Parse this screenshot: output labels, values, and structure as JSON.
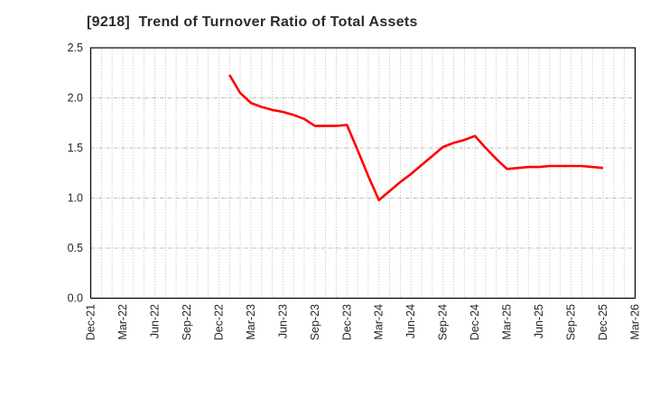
{
  "chart_data": {
    "type": "line",
    "title": "[9218]  Trend of Turnover Ratio of Total Assets",
    "xlabel": "",
    "ylabel": "",
    "legend": "none",
    "grid": "on",
    "background_color": "#ffffff",
    "frame_color": "#000000",
    "grid_color": "#a9a9a9",
    "tick_label_color": "#262626",
    "title_color": "#2b2b2b",
    "line_color": "#ff0000",
    "y_axis": {
      "min": 0.0,
      "max": 2.5,
      "step": 0.5
    },
    "y_tick_labels": [
      "0.0",
      "0.5",
      "1.0",
      "1.5",
      "2.0",
      "2.5"
    ],
    "x_axis_start": "Dec-21",
    "x_axis_end": "Mar-26",
    "total_months": 51,
    "x_tick_interval_months": 3,
    "x_tick_labels": [
      "Dec-21",
      "Mar-22",
      "Jun-22",
      "Sep-22",
      "Dec-22",
      "Mar-23",
      "Jun-23",
      "Sep-23",
      "Dec-23",
      "Mar-24",
      "Jun-24",
      "Sep-24",
      "Dec-24",
      "Mar-25",
      "Jun-25",
      "Sep-25",
      "Dec-25",
      "Mar-26"
    ],
    "series": [
      {
        "name": "Turnover Ratio of Total Assets",
        "color": "#ff0000",
        "points": [
          {
            "month": "Jan-23",
            "value": 2.23
          },
          {
            "month": "Feb-23",
            "value": 2.05
          },
          {
            "month": "Mar-23",
            "value": 1.95
          },
          {
            "month": "Apr-23",
            "value": 1.91
          },
          {
            "month": "May-23",
            "value": 1.88
          },
          {
            "month": "Jun-23",
            "value": 1.86
          },
          {
            "month": "Jul-23",
            "value": 1.83
          },
          {
            "month": "Aug-23",
            "value": 1.79
          },
          {
            "month": "Sep-23",
            "value": 1.72
          },
          {
            "month": "Oct-23",
            "value": 1.72
          },
          {
            "month": "Nov-23",
            "value": 1.72
          },
          {
            "month": "Dec-23",
            "value": 1.73
          },
          {
            "month": "Jan-24",
            "value": 1.48
          },
          {
            "month": "Feb-24",
            "value": 1.22
          },
          {
            "month": "Mar-24",
            "value": 0.98
          },
          {
            "month": "Apr-24",
            "value": 1.07
          },
          {
            "month": "May-24",
            "value": 1.16
          },
          {
            "month": "Jun-24",
            "value": 1.24
          },
          {
            "month": "Jul-24",
            "value": 1.33
          },
          {
            "month": "Aug-24",
            "value": 1.42
          },
          {
            "month": "Sep-24",
            "value": 1.51
          },
          {
            "month": "Oct-24",
            "value": 1.55
          },
          {
            "month": "Nov-24",
            "value": 1.58
          },
          {
            "month": "Dec-24",
            "value": 1.62
          },
          {
            "month": "Jan-25",
            "value": 1.5
          },
          {
            "month": "Feb-25",
            "value": 1.39
          },
          {
            "month": "Mar-25",
            "value": 1.29
          },
          {
            "month": "Apr-25",
            "value": 1.3
          },
          {
            "month": "May-25",
            "value": 1.31
          },
          {
            "month": "Jun-25",
            "value": 1.31
          },
          {
            "month": "Jul-25",
            "value": 1.32
          },
          {
            "month": "Aug-25",
            "value": 1.32
          },
          {
            "month": "Sep-25",
            "value": 1.32
          },
          {
            "month": "Oct-25",
            "value": 1.32
          },
          {
            "month": "Nov-25",
            "value": 1.31
          },
          {
            "month": "Dec-25",
            "value": 1.3
          }
        ]
      }
    ]
  }
}
